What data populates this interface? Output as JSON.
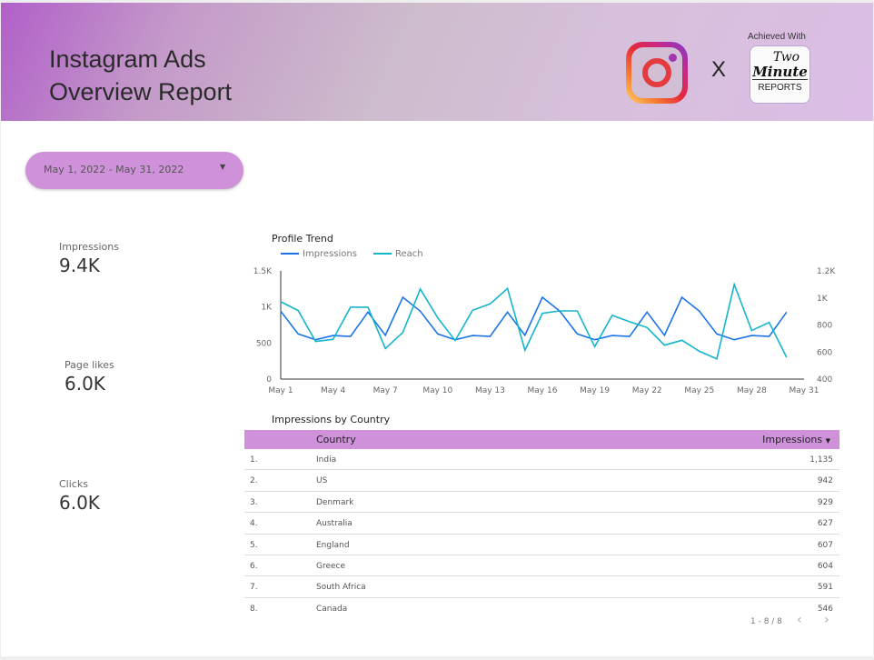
{
  "header": {
    "title_line1": "Instagram Ads",
    "title_line2": "Overview Report",
    "separator": "X",
    "achieved_with": "Achieved With",
    "partner_logo": {
      "line1": "Two",
      "line2": "Minute",
      "line3": "REPORTS"
    }
  },
  "date_range": {
    "value": "May 1, 2022 - May 31, 2022",
    "icon": "caret-down-icon"
  },
  "kpis": [
    {
      "label": "Impressions",
      "value": "9.4K"
    },
    {
      "label": "Page likes",
      "value": "6.0K"
    },
    {
      "label": "Clicks",
      "value": "6.0K"
    }
  ],
  "chart_data": {
    "type": "line",
    "title": "Profile Trend",
    "x": [
      "May 1",
      "May 2",
      "May 3",
      "May 4",
      "May 5",
      "May 6",
      "May 7",
      "May 8",
      "May 9",
      "May 10",
      "May 11",
      "May 12",
      "May 13",
      "May 14",
      "May 15",
      "May 16",
      "May 17",
      "May 18",
      "May 19",
      "May 20",
      "May 21",
      "May 22",
      "May 23",
      "May 24",
      "May 25",
      "May 26",
      "May 27",
      "May 28",
      "May 29",
      "May 30"
    ],
    "x_ticks": [
      "May 1",
      "May 4",
      "May 7",
      "May 10",
      "May 13",
      "May 16",
      "May 19",
      "May 22",
      "May 25",
      "May 28",
      "May 31"
    ],
    "y_left": {
      "range": [
        0,
        1500
      ],
      "ticks": [
        "0",
        "500",
        "1K",
        "1.5K"
      ]
    },
    "y_right": {
      "range": [
        400,
        1200
      ],
      "ticks": [
        "400",
        "600",
        "800",
        "1K",
        "1.2K"
      ]
    },
    "legend_position": "top-left",
    "grid": false,
    "series": [
      {
        "name": "Impressions",
        "axis": "left",
        "color": "#1a73e8",
        "values": [
          942,
          627,
          546,
          604,
          591,
          929,
          607,
          1135,
          942,
          627,
          546,
          604,
          591,
          929,
          607,
          1135,
          942,
          627,
          546,
          604,
          591,
          929,
          607,
          1135,
          942,
          627,
          546,
          604,
          591,
          929
        ]
      },
      {
        "name": "Reach",
        "axis": "right",
        "color": "#12b5cb",
        "values": [
          972,
          907,
          678,
          694,
          932,
          932,
          626,
          745,
          1066,
          853,
          685,
          909,
          956,
          1070,
          613,
          887,
          904,
          904,
          640,
          871,
          824,
          781,
          651,
          687,
          606,
          550,
          1100,
          759,
          819,
          561
        ]
      }
    ]
  },
  "table": {
    "title": "Impressions by Country",
    "columns": [
      "Country",
      "Impressions"
    ],
    "sort_icon": "caret-down-icon",
    "rows": [
      {
        "n": "1.",
        "country": "India",
        "value": "1,135"
      },
      {
        "n": "2.",
        "country": "US",
        "value": "942"
      },
      {
        "n": "3.",
        "country": "Denmark",
        "value": "929"
      },
      {
        "n": "4.",
        "country": "Australia",
        "value": "627"
      },
      {
        "n": "5.",
        "country": "England",
        "value": "607"
      },
      {
        "n": "6.",
        "country": "Greece",
        "value": "604"
      },
      {
        "n": "7.",
        "country": "South Africa",
        "value": "591"
      },
      {
        "n": "8.",
        "country": "Canada",
        "value": "546"
      }
    ],
    "pagination": "1 - 8 / 8"
  }
}
